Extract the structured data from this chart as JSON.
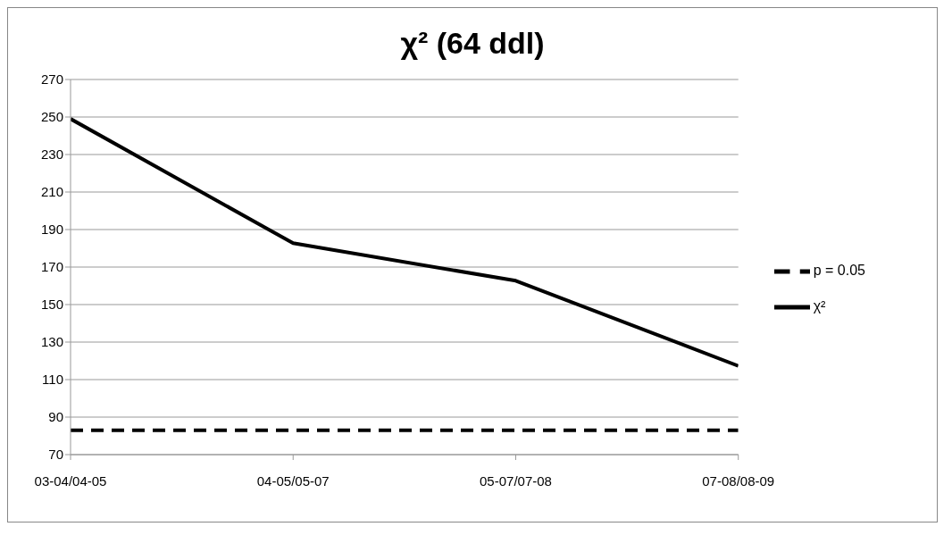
{
  "chart_data": {
    "type": "line",
    "title": "χ² (64 ddl)",
    "categories": [
      "03-04/04-05",
      "04-05/05-07",
      "05-07/07-08",
      "07-08/08-09"
    ],
    "series": [
      {
        "name": "χ²",
        "color": "#000000",
        "values": [
          249,
          182.7,
          162.7,
          117.3
        ],
        "line_style": "solid"
      },
      {
        "name": "p = 0.05",
        "color": "#000000",
        "values": [
          83,
          83,
          83,
          83
        ],
        "line_style": "dashed"
      }
    ],
    "ylim": [
      70,
      270
    ],
    "yticks": [
      70,
      90,
      110,
      130,
      150,
      170,
      190,
      210,
      230,
      250,
      270
    ],
    "grid": "y",
    "legend": "right",
    "marker": "none"
  }
}
